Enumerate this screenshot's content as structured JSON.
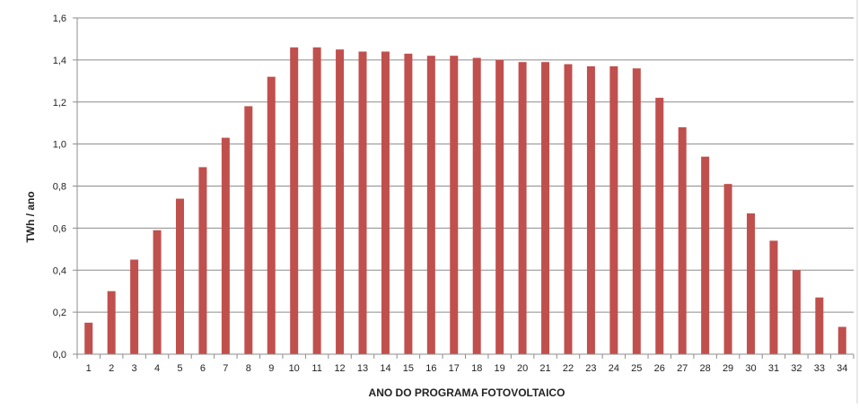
{
  "chart_data": {
    "type": "bar",
    "title": "",
    "xlabel": "ANO DO PROGRAMA FOTOVOLTAICO",
    "ylabel": "TWh / ano",
    "ylim": [
      0,
      1.6
    ],
    "yticks": [
      "0,0",
      "0,2",
      "0,4",
      "0,6",
      "0,8",
      "1,0",
      "1,2",
      "1,4",
      "1,6"
    ],
    "grid": "horizontal",
    "bar_color": "#c0504d",
    "categories": [
      "1",
      "2",
      "3",
      "4",
      "5",
      "6",
      "7",
      "8",
      "9",
      "10",
      "11",
      "12",
      "13",
      "14",
      "15",
      "16",
      "17",
      "18",
      "19",
      "20",
      "21",
      "22",
      "23",
      "24",
      "25",
      "26",
      "27",
      "28",
      "29",
      "30",
      "31",
      "32",
      "33",
      "34"
    ],
    "values": [
      0.15,
      0.3,
      0.45,
      0.59,
      0.74,
      0.89,
      1.03,
      1.18,
      1.32,
      1.46,
      1.46,
      1.45,
      1.44,
      1.44,
      1.43,
      1.42,
      1.42,
      1.41,
      1.4,
      1.39,
      1.39,
      1.38,
      1.37,
      1.37,
      1.36,
      1.22,
      1.08,
      0.94,
      0.81,
      0.67,
      0.54,
      0.4,
      0.27,
      0.13
    ]
  }
}
